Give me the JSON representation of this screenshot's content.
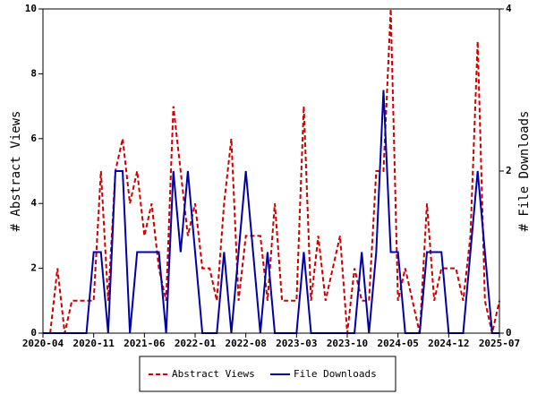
{
  "chart_data": {
    "type": "line",
    "categories": [
      "2020-04",
      null,
      null,
      null,
      null,
      null,
      null,
      "2020-11",
      null,
      null,
      null,
      null,
      null,
      null,
      "2021-06",
      null,
      null,
      null,
      null,
      null,
      null,
      "2022-01",
      null,
      null,
      null,
      null,
      null,
      null,
      "2022-08",
      null,
      null,
      null,
      null,
      null,
      null,
      "2023-03",
      null,
      null,
      null,
      null,
      null,
      null,
      "2023-10",
      null,
      null,
      null,
      null,
      null,
      null,
      "2024-05",
      null,
      null,
      null,
      null,
      null,
      null,
      "2024-12",
      null,
      null,
      null,
      null,
      null,
      null,
      "2025-07"
    ],
    "y_label": "# Abstract Views",
    "y2_label": "# File Downloads",
    "ylim": [
      0,
      10
    ],
    "yticks": [
      0,
      2,
      4,
      6,
      8,
      10
    ],
    "y2lim": [
      0,
      4
    ],
    "y2ticks": [
      0,
      2,
      4
    ],
    "series": [
      {
        "name": "Abstract Views",
        "color": "#cc0000",
        "dash": true,
        "values": [
          0,
          0,
          2,
          0,
          1,
          1,
          1,
          1,
          5,
          1,
          5,
          6,
          4,
          5,
          3,
          4,
          2,
          1,
          7,
          5,
          3,
          4,
          2,
          2,
          1,
          4,
          6,
          1,
          3,
          3,
          3,
          1,
          4,
          1,
          1,
          1,
          7,
          1,
          3,
          1,
          2,
          3,
          0,
          2,
          1,
          1,
          5,
          5,
          10,
          1,
          2,
          1,
          0,
          4,
          1,
          2,
          2,
          2,
          1,
          3,
          9,
          1,
          0,
          1
        ]
      },
      {
        "name": "File Downloads",
        "color": "#0000aa",
        "axis": "y2",
        "values": [
          0,
          0,
          0,
          0,
          0,
          0,
          0,
          1,
          1,
          0,
          2,
          2,
          0,
          1,
          1,
          1,
          1,
          0,
          2,
          1,
          2,
          1,
          0,
          0,
          0,
          1,
          0,
          1,
          2,
          1,
          0,
          1,
          0,
          0,
          0,
          0,
          1,
          0,
          0,
          0,
          0,
          0,
          0,
          0,
          1,
          0,
          1,
          3,
          1,
          1,
          0,
          0,
          0,
          1,
          1,
          1,
          0,
          0,
          0,
          1,
          2,
          1,
          0,
          0
        ]
      }
    ],
    "legend": "bottom"
  }
}
